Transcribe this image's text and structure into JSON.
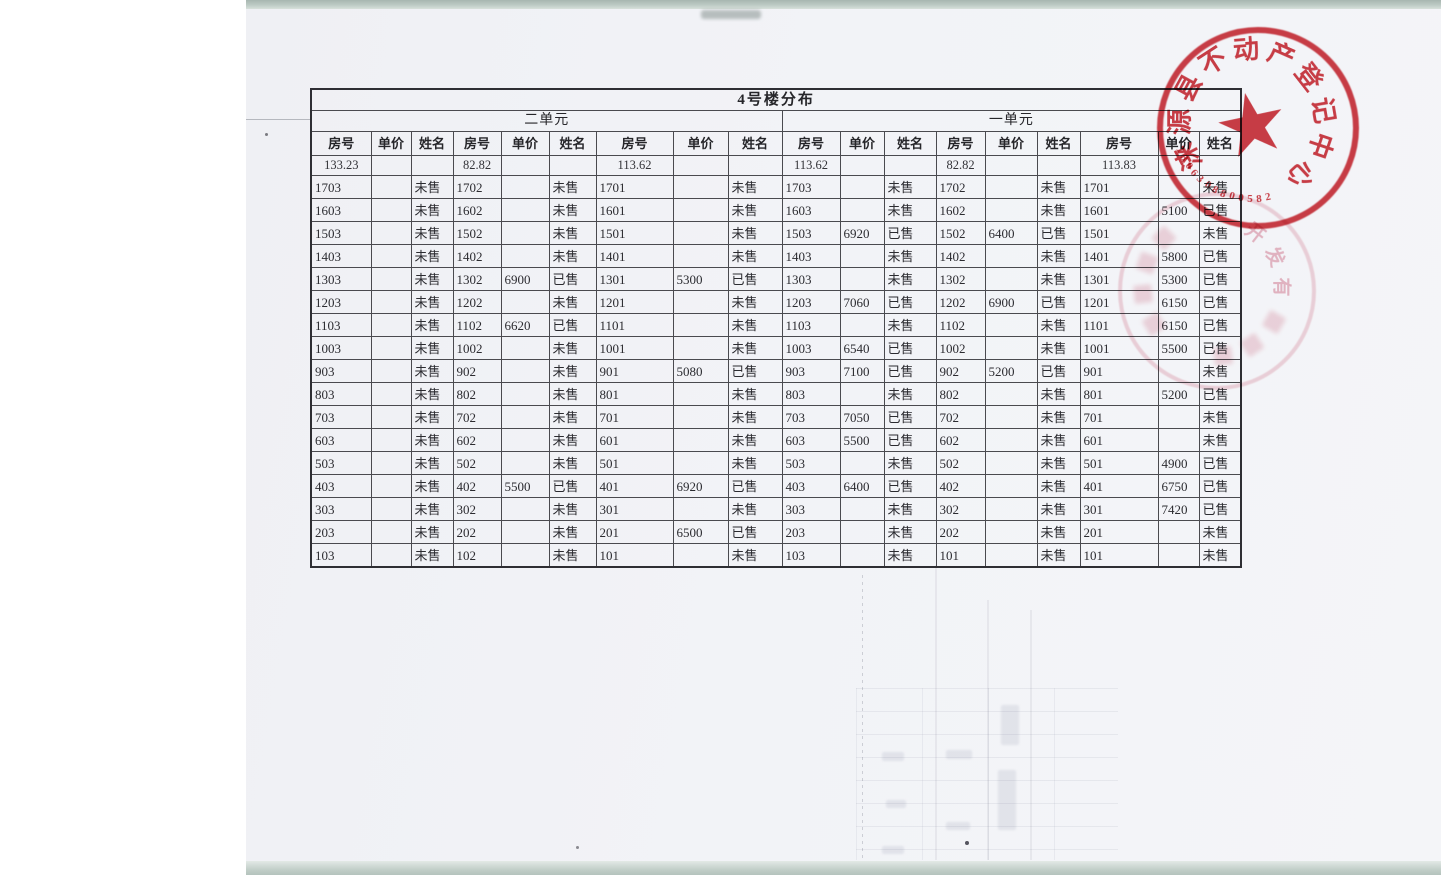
{
  "document": {
    "title": "4号楼分布"
  },
  "table": {
    "unit_headers": [
      "二单元",
      "一单元"
    ],
    "col_headers": [
      "房号",
      "单价",
      "姓名"
    ],
    "area_row": [
      "133.23",
      "",
      "",
      "82.82",
      "",
      "",
      "113.62",
      "",
      "",
      "113.62",
      "",
      "",
      "82.82",
      "",
      "",
      "113.83",
      "",
      ""
    ],
    "rows": [
      [
        "1703",
        "",
        "未售",
        "1702",
        "",
        "未售",
        "1701",
        "",
        "未售",
        "1703",
        "",
        "未售",
        "1702",
        "",
        "未售",
        "1701",
        "",
        "未售"
      ],
      [
        "1603",
        "",
        "未售",
        "1602",
        "",
        "未售",
        "1601",
        "",
        "未售",
        "1603",
        "",
        "未售",
        "1602",
        "",
        "未售",
        "1601",
        "5100",
        "已售"
      ],
      [
        "1503",
        "",
        "未售",
        "1502",
        "",
        "未售",
        "1501",
        "",
        "未售",
        "1503",
        "6920",
        "已售",
        "1502",
        "6400",
        "已售",
        "1501",
        "",
        "未售"
      ],
      [
        "1403",
        "",
        "未售",
        "1402",
        "",
        "未售",
        "1401",
        "",
        "未售",
        "1403",
        "",
        "未售",
        "1402",
        "",
        "未售",
        "1401",
        "5800",
        "已售"
      ],
      [
        "1303",
        "",
        "未售",
        "1302",
        "6900",
        "已售",
        "1301",
        "5300",
        "已售",
        "1303",
        "",
        "未售",
        "1302",
        "",
        "未售",
        "1301",
        "5300",
        "已售"
      ],
      [
        "1203",
        "",
        "未售",
        "1202",
        "",
        "未售",
        "1201",
        "",
        "未售",
        "1203",
        "7060",
        "已售",
        "1202",
        "6900",
        "已售",
        "1201",
        "6150",
        "已售"
      ],
      [
        "1103",
        "",
        "未售",
        "1102",
        "6620",
        "已售",
        "1101",
        "",
        "未售",
        "1103",
        "",
        "未售",
        "1102",
        "",
        "未售",
        "1101",
        "6150",
        "已售"
      ],
      [
        "1003",
        "",
        "未售",
        "1002",
        "",
        "未售",
        "1001",
        "",
        "未售",
        "1003",
        "6540",
        "已售",
        "1002",
        "",
        "未售",
        "1001",
        "5500",
        "已售"
      ],
      [
        "903",
        "",
        "未售",
        "902",
        "",
        "未售",
        "901",
        "5080",
        "已售",
        "903",
        "7100",
        "已售",
        "902",
        "5200",
        "已售",
        "901",
        "",
        "未售"
      ],
      [
        "803",
        "",
        "未售",
        "802",
        "",
        "未售",
        "801",
        "",
        "未售",
        "803",
        "",
        "未售",
        "802",
        "",
        "未售",
        "801",
        "5200",
        "已售"
      ],
      [
        "703",
        "",
        "未售",
        "702",
        "",
        "未售",
        "701",
        "",
        "未售",
        "703",
        "7050",
        "已售",
        "702",
        "",
        "未售",
        "701",
        "",
        "未售"
      ],
      [
        "603",
        "",
        "未售",
        "602",
        "",
        "未售",
        "601",
        "",
        "未售",
        "603",
        "5500",
        "已售",
        "602",
        "",
        "未售",
        "601",
        "",
        "未售"
      ],
      [
        "503",
        "",
        "未售",
        "502",
        "",
        "未售",
        "501",
        "",
        "未售",
        "503",
        "",
        "未售",
        "502",
        "",
        "未售",
        "501",
        "4900",
        "已售"
      ],
      [
        "403",
        "",
        "未售",
        "402",
        "5500",
        "已售",
        "401",
        "6920",
        "已售",
        "403",
        "6400",
        "已售",
        "402",
        "",
        "未售",
        "401",
        "6750",
        "已售"
      ],
      [
        "303",
        "",
        "未售",
        "302",
        "",
        "未售",
        "301",
        "",
        "未售",
        "303",
        "",
        "未售",
        "302",
        "",
        "未售",
        "301",
        "7420",
        "已售"
      ],
      [
        "203",
        "",
        "未售",
        "202",
        "",
        "未售",
        "201",
        "6500",
        "已售",
        "203",
        "",
        "未售",
        "202",
        "",
        "未售",
        "201",
        "",
        "未售"
      ],
      [
        "103",
        "",
        "未售",
        "102",
        "",
        "未售",
        "101",
        "",
        "未售",
        "103",
        "",
        "未售",
        "101",
        "",
        "未售",
        "101",
        "",
        "未售"
      ]
    ]
  },
  "stamp": {
    "org_text": "涞源县不动产登记中心",
    "number": "1306308800582",
    "star": "★",
    "color": "rgba(201,35,46,0.88)"
  },
  "faint_stamp": {
    "visible_text": "开发有",
    "color": "rgba(214,110,135,0.48)"
  }
}
